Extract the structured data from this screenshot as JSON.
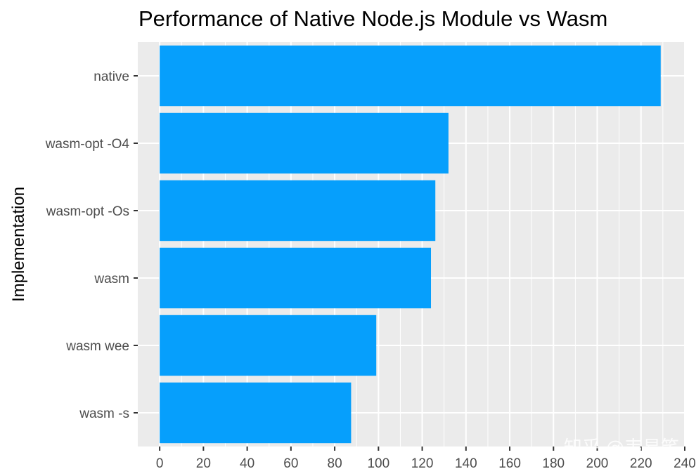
{
  "chart_data": {
    "type": "bar",
    "orientation": "horizontal",
    "title": "Performance of Native Node.js Module vs Wasm",
    "xlabel": "",
    "ylabel": "Implementation",
    "categories": [
      "native",
      "wasm-opt -O4",
      "wasm-opt -Os",
      "wasm",
      "wasm wee",
      "wasm -s"
    ],
    "values": [
      229,
      132,
      126,
      124,
      99,
      87.5
    ],
    "xlim": [
      -10,
      240
    ],
    "xticks": [
      0,
      20,
      40,
      60,
      80,
      100,
      120,
      140,
      160,
      180,
      200,
      220,
      240
    ],
    "grid": true,
    "legend": "none",
    "colors": {
      "bar": "#069ffc",
      "panel": "#ebebeb",
      "grid": "#ffffff",
      "tick_text": "#4d4d4d",
      "tick_mark": "#333333"
    }
  },
  "watermark": "知乎 @韦易笑"
}
